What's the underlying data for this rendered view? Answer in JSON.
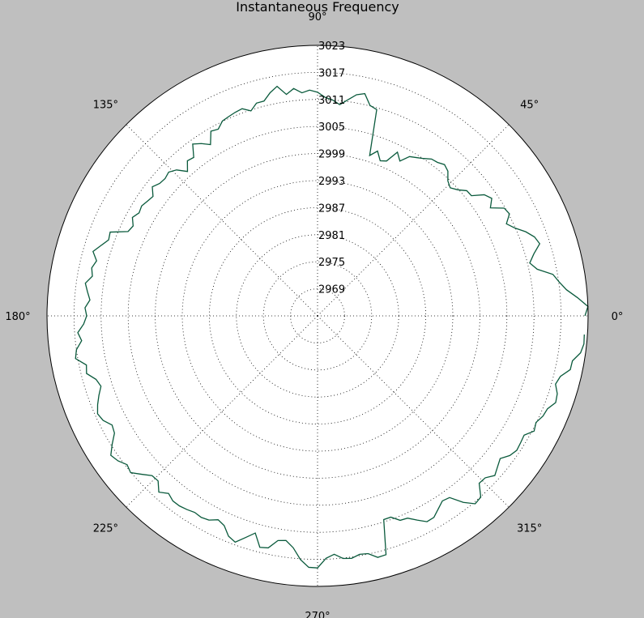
{
  "chart_data": {
    "type": "line",
    "projection": "polar",
    "title": "Instantaneous Frequency",
    "theta_unit": "degrees",
    "theta_tick_labels": [
      "0°",
      "45°",
      "90°",
      "135°",
      "180°",
      "225°",
      "270°",
      "315°"
    ],
    "theta_tick_values": [
      0,
      45,
      90,
      135,
      180,
      225,
      270,
      315
    ],
    "r_tick_labels": [
      "2969",
      "2975",
      "2981",
      "2987",
      "2993",
      "2999",
      "3005",
      "3011",
      "3017",
      "3023"
    ],
    "r_tick_values": [
      2969,
      2975,
      2981,
      2987,
      2993,
      2999,
      3005,
      3011,
      3017,
      3023
    ],
    "r_lim": [
      2963,
      3023
    ],
    "grid": true,
    "line_color": "#0a5a3c",
    "series": [
      {
        "theta": [
          0,
          2,
          4,
          6,
          8,
          10,
          12,
          14,
          16,
          18,
          20,
          22,
          24,
          26,
          28,
          30,
          32,
          34,
          36,
          38,
          40,
          42,
          44,
          46,
          48,
          50,
          52,
          54,
          56,
          58,
          60,
          62,
          64,
          66,
          68,
          70,
          72,
          74,
          76,
          78,
          80,
          82,
          84,
          86,
          88,
          90,
          92,
          94,
          96,
          98,
          100,
          102,
          104,
          106,
          108,
          110,
          112,
          114,
          116,
          118,
          120,
          122,
          124,
          126,
          128,
          130,
          132,
          134,
          136,
          138,
          140,
          142,
          144,
          146,
          148,
          150,
          152,
          154,
          156,
          158,
          160,
          162,
          164,
          166,
          168,
          170,
          172,
          174,
          176,
          178,
          180,
          182,
          184,
          186,
          188,
          190,
          192,
          194,
          196,
          198,
          200,
          202,
          204,
          206,
          208,
          210,
          212,
          214,
          216,
          218,
          220,
          222,
          224,
          226,
          228,
          230,
          232,
          234,
          236,
          238,
          240,
          242,
          244,
          246,
          248,
          250,
          252,
          254,
          256,
          258,
          260,
          262,
          264,
          266,
          268,
          270,
          272,
          274,
          276,
          278,
          280,
          282,
          284,
          286,
          288,
          290,
          292,
          294,
          296,
          298,
          300,
          302,
          304,
          306,
          308,
          310,
          312,
          314,
          316,
          318,
          320,
          322,
          324,
          326,
          328,
          330,
          332,
          334,
          336,
          338,
          340,
          342,
          344,
          346,
          348,
          350,
          352,
          354,
          356,
          358,
          360
        ],
        "r": [
          3022.3,
          3023.0,
          3020.8,
          3018.5,
          3017.1,
          3016.0,
          3012.8,
          3011.5,
          3012.9,
          3014.8,
          3014.2,
          3012.8,
          3010.9,
          3009.6,
          3011.2,
          3010.8,
          3008.2,
          3009.6,
          3008.7,
          3006.3,
          3006.2,
          3004.8,
          3003.9,
          3004.6,
          3006.2,
          3006.8,
          3006.2,
          3006.0,
          3005.1,
          3004.4,
          3003.8,
          3001.9,
          3003.4,
          3000.6,
          3000.1,
          3001.9,
          3000.4,
          3010.6,
          3011.1,
          3013.4,
          3012.8,
          3011.4,
          3010.1,
          3011.0,
          3011.5,
          3012.6,
          3013.1,
          3012.6,
          3013.7,
          3012.6,
          3014.7,
          3013.6,
          3012.1,
          3012.1,
          3010.8,
          3011.9,
          3011.7,
          3011.4,
          3011.1,
          3009.9,
          3010.3,
          3007.8,
          3009.1,
          3010.1,
          3007.6,
          3007.9,
          3006.1,
          3008.0,
          3008.9,
          3008.5,
          3008.7,
          3009.5,
          3008.1,
          3008.5,
          3009.0,
          3008.7,
          3009.5,
          3008.5,
          3009.0,
          3012.6,
          3012.3,
          3013.5,
          3014.8,
          3013.5,
          3014.2,
          3013.7,
          3015.0,
          3014.3,
          3013.6,
          3014.6,
          3014.2,
          3014.9,
          3016.3,
          3015.6,
          3017.0,
          3017.5,
          3015.4,
          3015.8,
          3014.1,
          3013.5,
          3014.6,
          3015.6,
          3016.4,
          3015.9,
          3014.6,
          3015.0,
          3016.7,
          3018.3,
          3017.7,
          3016.6,
          3017.1,
          3015.5,
          3014.0,
          3013.9,
          3015.6,
          3014.4,
          3015.1,
          3015.1,
          3014.8,
          3014.4,
          3014.6,
          3014.3,
          3013.3,
          3013.9,
          3015.7,
          3016.4,
          3014.7,
          3013.1,
          3015.9,
          3015.6,
          3013.6,
          3013.3,
          3014.7,
          3017.2,
          3018.8,
          3018.9,
          3016.8,
          3016.0,
          3017.1,
          3017.3,
          3016.7,
          3016.9,
          3018.2,
          3018.1,
          3010.5,
          3010.5,
          3011.9,
          3012.1,
          3013.4,
          3014.7,
          3014.6,
          3013.5,
          3012.5,
          3012.8,
          3015.5,
          3017.4,
          3017.1,
          3014.6,
          3014.7,
          3015.9,
          3015.1,
          3014.4,
          3015.7,
          3016.3,
          3016.1,
          3015.9,
          3017.4,
          3016.9,
          3017.7,
          3018.0,
          3019.2,
          3018.9,
          3017.9,
          3018.5,
          3020.3,
          3020.4,
          3021.9,
          3022.4,
          3022.3
        ]
      }
    ]
  }
}
